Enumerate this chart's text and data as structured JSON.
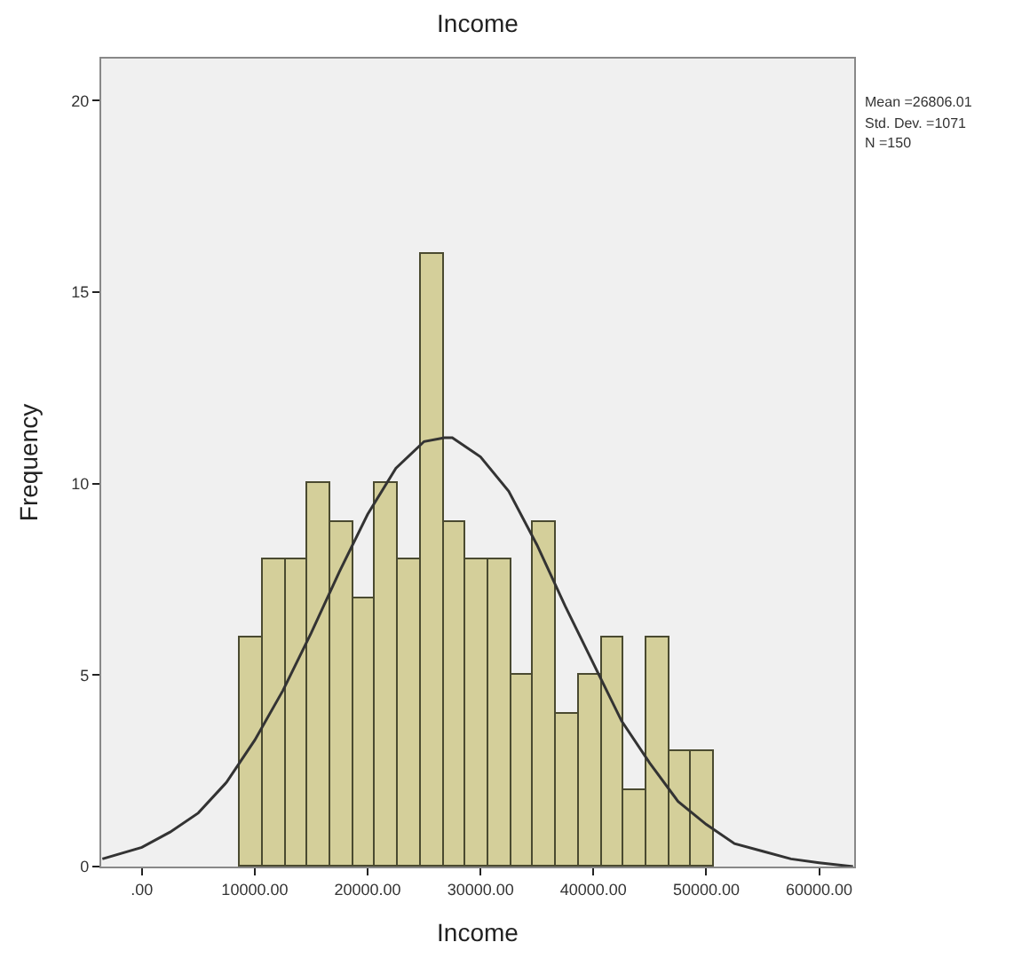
{
  "chart_data": {
    "type": "histogram",
    "title": "Income",
    "xlabel": "Income",
    "ylabel": "Frequency",
    "series": [
      {
        "color": "#d4cf9a",
        "bins": [
          8700,
          10700,
          12700,
          14700,
          16700,
          18700,
          20700,
          22700,
          24700,
          26700,
          28700,
          30700,
          32700,
          34700,
          36700,
          38700,
          40700,
          42700,
          44700,
          46700,
          48700,
          50700
        ],
        "values": [
          6,
          8,
          8,
          10,
          9,
          7,
          10,
          8,
          16,
          9,
          8,
          8,
          5,
          9,
          4,
          5,
          6,
          2,
          6,
          3,
          3
        ]
      },
      {
        "type": "line",
        "color": "#333333",
        "x": [
          -3500,
          0,
          2500,
          5000,
          7500,
          10000,
          12500,
          15000,
          17500,
          20000,
          22500,
          25000,
          26806,
          27500,
          30000,
          32500,
          35000,
          37500,
          40000,
          42500,
          45000,
          47500,
          50000,
          52500,
          55000,
          57500,
          60000,
          63000
        ],
        "values": [
          0.2,
          0.5,
          0.9,
          1.4,
          2.2,
          3.3,
          4.6,
          6.1,
          7.7,
          9.2,
          10.4,
          11.1,
          11.2,
          11.2,
          10.7,
          9.8,
          8.4,
          6.8,
          5.3,
          3.8,
          2.7,
          1.7,
          1.1,
          0.6,
          0.4,
          0.2,
          0.1,
          0.0
        ]
      }
    ],
    "xlim": [
      -3600,
      63100
    ],
    "ylim": [
      0,
      21.1
    ],
    "xticks": [
      {
        "value": 0,
        "label": ".00"
      },
      {
        "value": 10000,
        "label": "10000.00"
      },
      {
        "value": 20000,
        "label": "20000.00"
      },
      {
        "value": 30000,
        "label": "30000.00"
      },
      {
        "value": 40000,
        "label": "40000.00"
      },
      {
        "value": 50000,
        "label": "50000.00"
      },
      {
        "value": 60000,
        "label": "60000.00"
      }
    ],
    "yticks": [
      0,
      5,
      10,
      15,
      20
    ],
    "annotations": [
      "Mean =26806.01",
      "Std. Dev. =1071",
      "N =150"
    ],
    "grid": false
  }
}
